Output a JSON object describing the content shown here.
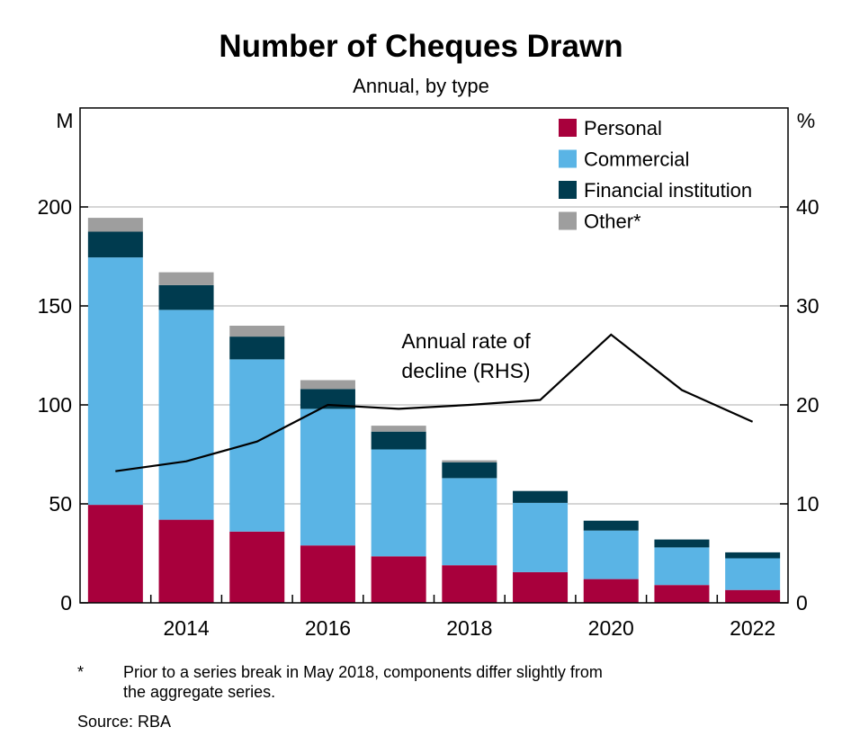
{
  "chart_data": {
    "type": "bar",
    "title": "Number of Cheques Drawn",
    "subtitle": "Annual, by type",
    "left_axis": {
      "unit": "M",
      "ylim": [
        0,
        250
      ],
      "ticks": [
        "0",
        "50",
        "100",
        "150",
        "200"
      ]
    },
    "right_axis": {
      "unit": "%",
      "ylim": [
        0,
        50
      ],
      "ticks": [
        "0",
        "10",
        "20",
        "30",
        "40"
      ]
    },
    "x_tick_labels": [
      "2014",
      "2016",
      "2018",
      "2020",
      "2022"
    ],
    "x": [
      2013,
      2014,
      2015,
      2016,
      2017,
      2018,
      2019,
      2020,
      2021,
      2022
    ],
    "stacked": true,
    "series": [
      {
        "name": "Personal",
        "color": "#a8003c",
        "values": [
          49.5,
          42,
          36,
          29,
          23.5,
          19,
          15.5,
          12,
          9,
          6.5
        ]
      },
      {
        "name": "Commercial",
        "color": "#5ab4e5",
        "values": [
          125,
          106,
          87,
          69,
          54,
          44,
          35,
          24.5,
          19,
          16
        ]
      },
      {
        "name": "Financial institution",
        "color": "#003b4f",
        "values": [
          13,
          12.5,
          11.5,
          10,
          9,
          8,
          6,
          5,
          4,
          3
        ]
      },
      {
        "name": "Other*",
        "color": "#9e9e9e",
        "values": [
          7,
          6.5,
          5.5,
          4.5,
          3,
          1,
          0,
          0,
          0,
          0
        ]
      }
    ],
    "line_series": {
      "axis": "right",
      "color": "#000000",
      "x": [
        2013,
        2014,
        2015,
        2016,
        2017,
        2018,
        2019,
        2020,
        2021,
        2022
      ],
      "values": [
        13.3,
        14.3,
        16.3,
        20,
        19.6,
        20,
        20.5,
        27.1,
        21.5,
        18.3
      ]
    },
    "annotation": {
      "lines": [
        "Annual rate of",
        "decline (RHS)"
      ]
    },
    "legend_position": "top-right",
    "grid": "horizontal"
  },
  "footnote": {
    "marker": "*",
    "text_line1": "Prior to a series break in May 2018, components differ slightly from",
    "text_line2": "the aggregate series.",
    "source": "Source:  RBA"
  }
}
